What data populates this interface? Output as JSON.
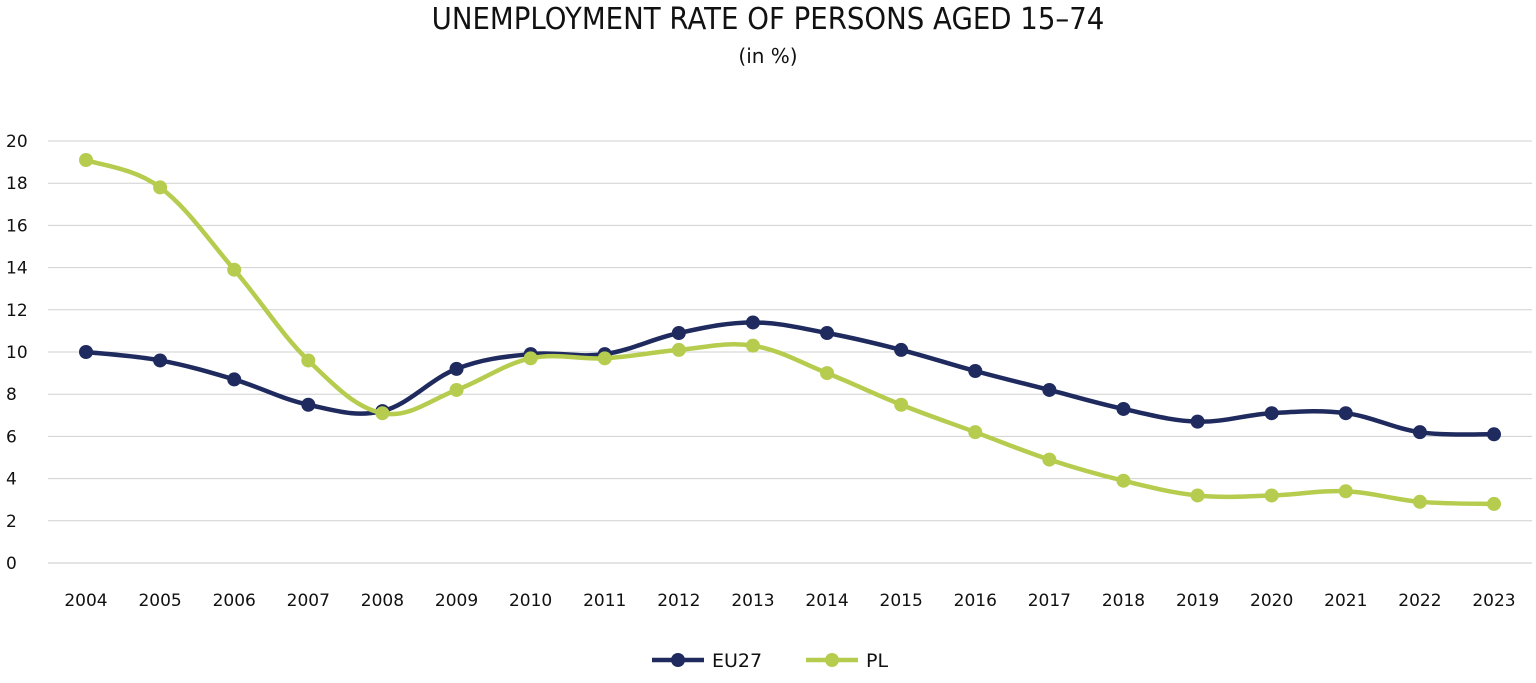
{
  "chart_data": {
    "type": "line",
    "title": "UNEMPLOYMENT RATE OF PERSONS AGED 15–74",
    "subtitle": "(in %)",
    "xlabel": "",
    "ylabel": "",
    "ylim": [
      0,
      20
    ],
    "yticks": [
      "0",
      "2",
      "4",
      "6",
      "8",
      "10",
      "12",
      "14",
      "16",
      "18",
      "20"
    ],
    "categories": [
      "2004",
      "2005",
      "2006",
      "2007",
      "2008",
      "2009",
      "2010",
      "2011",
      "2012",
      "2013",
      "2014",
      "2015",
      "2016",
      "2017",
      "2018",
      "2019",
      "2020",
      "2021",
      "2022",
      "2023"
    ],
    "grid": true,
    "legend_position": "bottom-center",
    "series": [
      {
        "name": "EU27",
        "color": "#1f2a5e",
        "values": [
          10.0,
          9.6,
          8.7,
          7.5,
          7.2,
          9.2,
          9.9,
          9.9,
          10.9,
          11.4,
          10.9,
          10.1,
          9.1,
          8.2,
          7.3,
          6.7,
          7.1,
          7.1,
          6.2,
          6.1
        ]
      },
      {
        "name": "PL",
        "color": "#b5cc4e",
        "values": [
          19.1,
          17.8,
          13.9,
          9.6,
          7.1,
          8.2,
          9.7,
          9.7,
          10.1,
          10.3,
          9.0,
          7.5,
          6.2,
          4.9,
          3.9,
          3.2,
          3.2,
          3.4,
          2.9,
          2.8
        ]
      }
    ]
  }
}
